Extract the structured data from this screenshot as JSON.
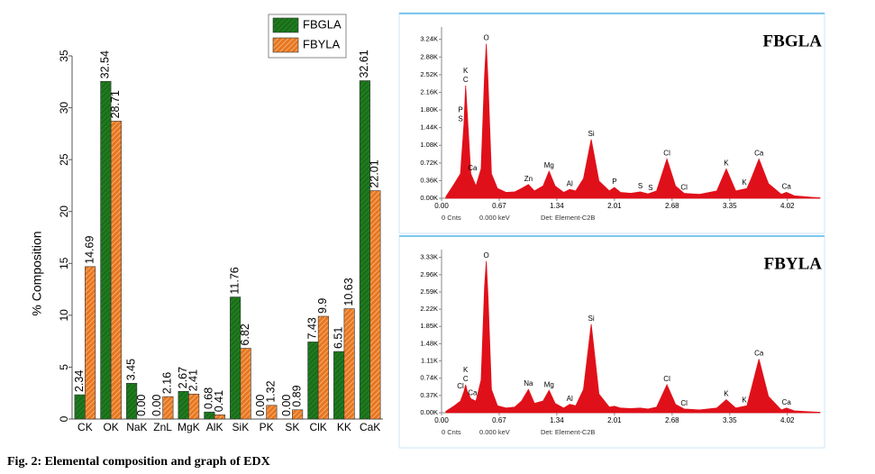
{
  "caption": "Fig. 2: Elemental composition and graph of EDX",
  "chart_data": [
    {
      "type": "bar",
      "y_label": "% Composition",
      "categories": [
        "CK",
        "OK",
        "NaK",
        "ZnL",
        "MgK",
        "AlK",
        "SiK",
        "PK",
        "SK",
        "ClK",
        "KK",
        "CaK"
      ],
      "series": [
        {
          "name": "FBGLA",
          "color": "#1e7a1e",
          "values": [
            2.34,
            32.54,
            3.45,
            0,
            2.67,
            0.68,
            11.76,
            0,
            0,
            7.43,
            6.51,
            32.61
          ],
          "value_labels": [
            "2.34",
            "32.54",
            "3.45",
            "0.00",
            "2.67",
            "0.68",
            "11.76",
            "0.00",
            "0.00",
            "7.43",
            "6.51",
            "32.61"
          ]
        },
        {
          "name": "FBYLA",
          "color": "#e8771f",
          "values": [
            14.69,
            28.71,
            0,
            2.16,
            2.41,
            0.41,
            6.82,
            1.32,
            0.89,
            9.9,
            10.63,
            22.01
          ],
          "value_labels": [
            "14.69",
            "28.71",
            "0.00",
            "2.16",
            "2.41",
            "0.41",
            "6.82",
            "1.32",
            "0.89",
            "9.9",
            "10.63",
            "22.01"
          ]
        }
      ],
      "ylim": [
        0,
        35
      ],
      "yticks": [
        0,
        5,
        10,
        15,
        20,
        25,
        30,
        35
      ]
    },
    {
      "type": "area",
      "title": "FBGLA",
      "footer": [
        "0 Cnts",
        "0.000 keV",
        "Det: Element-C2B"
      ],
      "color": "#e0101a",
      "x": [
        0.05,
        0.15,
        0.22,
        0.26,
        0.28,
        0.3,
        0.34,
        0.4,
        0.46,
        0.5,
        0.52,
        0.54,
        0.58,
        0.65,
        0.75,
        0.85,
        0.93,
        1.01,
        1.08,
        1.18,
        1.25,
        1.32,
        1.42,
        1.49,
        1.56,
        1.65,
        1.74,
        1.83,
        1.95,
        2.01,
        2.08,
        2.2,
        2.31,
        2.4,
        2.5,
        2.62,
        2.72,
        2.82,
        3.0,
        3.2,
        3.31,
        3.42,
        3.55,
        3.6,
        3.69,
        3.8,
        3.95,
        4.01,
        4.1,
        4.3,
        4.4
      ],
      "values": [
        30,
        300,
        500,
        1500,
        2300,
        1700,
        500,
        250,
        600,
        2500,
        3150,
        2400,
        500,
        200,
        120,
        130,
        200,
        280,
        150,
        250,
        550,
        250,
        120,
        180,
        150,
        400,
        1200,
        350,
        150,
        220,
        120,
        100,
        130,
        90,
        150,
        800,
        250,
        100,
        80,
        150,
        600,
        150,
        200,
        400,
        800,
        300,
        80,
        120,
        50,
        20,
        10
      ],
      "peak_labels": [
        {
          "text": "C",
          "x": 0.28
        },
        {
          "text": "K",
          "x": 0.28
        },
        {
          "text": "O",
          "x": 0.52
        },
        {
          "text": "S",
          "x": 0.22
        },
        {
          "text": "P",
          "x": 0.22
        },
        {
          "text": "Ca",
          "x": 0.36
        },
        {
          "text": "Zn",
          "x": 1.01
        },
        {
          "text": "Mg",
          "x": 1.25
        },
        {
          "text": "Al",
          "x": 1.49
        },
        {
          "text": "Si",
          "x": 1.74
        },
        {
          "text": "P",
          "x": 2.01
        },
        {
          "text": "S",
          "x": 2.31
        },
        {
          "text": "S",
          "x": 2.43
        },
        {
          "text": "Cl",
          "x": 2.62
        },
        {
          "text": "Cl",
          "x": 2.82
        },
        {
          "text": "K",
          "x": 3.31
        },
        {
          "text": "K",
          "x": 3.52
        },
        {
          "text": "Ca",
          "x": 3.69
        },
        {
          "text": "Ca",
          "x": 4.01
        }
      ],
      "xlim": [
        0,
        4.4
      ],
      "xticks": [
        {
          "value": 0,
          "label": "0.00"
        },
        0.67,
        1.34,
        2.01,
        2.68,
        3.35,
        4.02
      ],
      "ylim": [
        0,
        3400
      ],
      "yticks": [
        {
          "value": 0,
          "label": "0.00K"
        },
        {
          "value": 360,
          "label": "0.36K"
        },
        {
          "value": 720,
          "label": "0.72K"
        },
        {
          "value": 1080,
          "label": "1.08K"
        },
        {
          "value": 1440,
          "label": "1.44K"
        },
        {
          "value": 1800,
          "label": "1.80K"
        },
        {
          "value": 2160,
          "label": "2.16K"
        },
        {
          "value": 2520,
          "label": "2.52K"
        },
        {
          "value": 2880,
          "label": "2.88K"
        },
        {
          "value": 3240,
          "label": "3.24K"
        }
      ]
    },
    {
      "type": "area",
      "title": "FBYLA",
      "footer": [
        "0 Cnts",
        "0.000 keV",
        "Det: Element-C2B"
      ],
      "color": "#e0101a",
      "x": [
        0.05,
        0.15,
        0.22,
        0.26,
        0.28,
        0.3,
        0.34,
        0.4,
        0.46,
        0.5,
        0.52,
        0.54,
        0.58,
        0.65,
        0.75,
        0.85,
        0.93,
        1.01,
        1.08,
        1.18,
        1.25,
        1.32,
        1.42,
        1.49,
        1.56,
        1.65,
        1.74,
        1.83,
        1.95,
        2.01,
        2.08,
        2.2,
        2.31,
        2.4,
        2.5,
        2.62,
        2.72,
        2.82,
        3.0,
        3.2,
        3.31,
        3.42,
        3.55,
        3.6,
        3.69,
        3.8,
        3.95,
        4.01,
        4.1,
        4.3,
        4.4
      ],
      "values": [
        30,
        150,
        250,
        450,
        600,
        450,
        300,
        250,
        700,
        2700,
        3250,
        2500,
        500,
        150,
        100,
        120,
        250,
        500,
        200,
        250,
        480,
        200,
        100,
        180,
        150,
        500,
        1900,
        400,
        120,
        140,
        100,
        90,
        100,
        80,
        120,
        600,
        180,
        80,
        60,
        100,
        280,
        100,
        150,
        500,
        1150,
        350,
        60,
        100,
        40,
        20,
        10
      ],
      "peak_labels": [
        {
          "text": "C",
          "x": 0.28
        },
        {
          "text": "K",
          "x": 0.28
        },
        {
          "text": "O",
          "x": 0.52
        },
        {
          "text": "Cl",
          "x": 0.22
        },
        {
          "text": "Ca",
          "x": 0.36
        },
        {
          "text": "Na",
          "x": 1.01
        },
        {
          "text": "Mg",
          "x": 1.25
        },
        {
          "text": "Al",
          "x": 1.49
        },
        {
          "text": "Si",
          "x": 1.74
        },
        {
          "text": "Cl",
          "x": 2.62
        },
        {
          "text": "Cl",
          "x": 2.82
        },
        {
          "text": "K",
          "x": 3.31
        },
        {
          "text": "K",
          "x": 3.52
        },
        {
          "text": "Ca",
          "x": 3.69
        },
        {
          "text": "Ca",
          "x": 4.01
        }
      ],
      "xlim": [
        0,
        4.4
      ],
      "xticks": [
        {
          "value": 0,
          "label": "0.00"
        },
        0.67,
        1.34,
        2.01,
        2.68,
        3.35,
        4.02
      ],
      "ylim": [
        0,
        3400
      ],
      "yticks": [
        {
          "value": 0,
          "label": "0.00K"
        },
        {
          "value": 370,
          "label": "0.37K"
        },
        {
          "value": 740,
          "label": "0.74K"
        },
        {
          "value": 1110,
          "label": "1.11K"
        },
        {
          "value": 1480,
          "label": "1.48K"
        },
        {
          "value": 1850,
          "label": "1.85K"
        },
        {
          "value": 2220,
          "label": "2.22K"
        },
        {
          "value": 2590,
          "label": "2.59K"
        },
        {
          "value": 2960,
          "label": "2.96K"
        },
        {
          "value": 3330,
          "label": "3.33K"
        }
      ]
    }
  ]
}
